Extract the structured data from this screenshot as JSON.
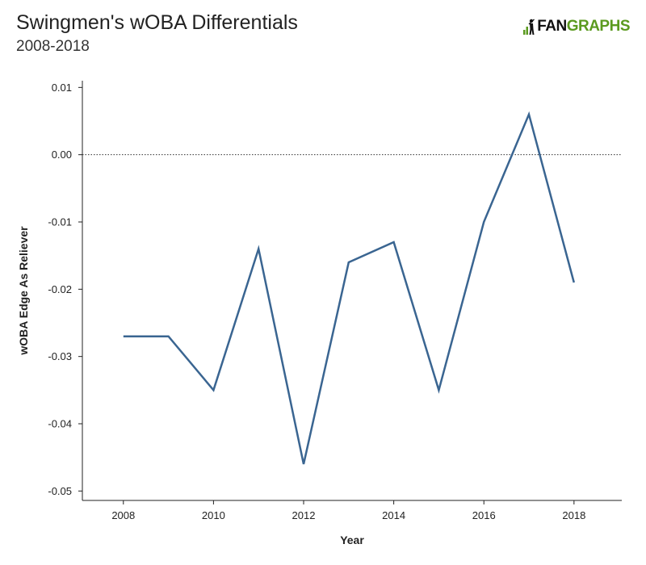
{
  "title": "Swingmen's wOBA Differentials",
  "subtitle": "2008-2018",
  "logo": {
    "text_dark": "FAN",
    "text_green": "GRAPHS",
    "green": "#5b9a1f",
    "icon": "batter-icon"
  },
  "colors": {
    "line": "#3a6591",
    "axis": "#222222",
    "zero_line": "#333333"
  },
  "chart_data": {
    "type": "line",
    "title": "Swingmen's wOBA Differentials",
    "subtitle": "2008-2018",
    "xlabel": "Year",
    "ylabel": "wOBA Edge As Reliever",
    "x": [
      2008,
      2009,
      2010,
      2011,
      2012,
      2013,
      2014,
      2015,
      2016,
      2017,
      2018
    ],
    "y": [
      -0.027,
      -0.027,
      -0.035,
      -0.014,
      -0.046,
      -0.016,
      -0.013,
      -0.035,
      -0.01,
      0.006,
      -0.019
    ],
    "xticks": [
      2008,
      2010,
      2012,
      2014,
      2016,
      2018
    ],
    "xtick_labels": [
      "2008",
      "2010",
      "2012",
      "2014",
      "2016",
      "2018"
    ],
    "yticks": [
      0.01,
      0.0,
      -0.01,
      -0.02,
      -0.03,
      -0.04,
      -0.05
    ],
    "ytick_labels": [
      "0.01",
      "0.00",
      "-0.01",
      "-0.02",
      "-0.03",
      "-0.04",
      "-0.05"
    ],
    "xlim": [
      2007.09,
      2019.06
    ],
    "ylim": [
      -0.0514,
      0.011
    ],
    "reference_line": 0,
    "reference_line_style": "dotted",
    "grid": false,
    "legend": "none"
  }
}
